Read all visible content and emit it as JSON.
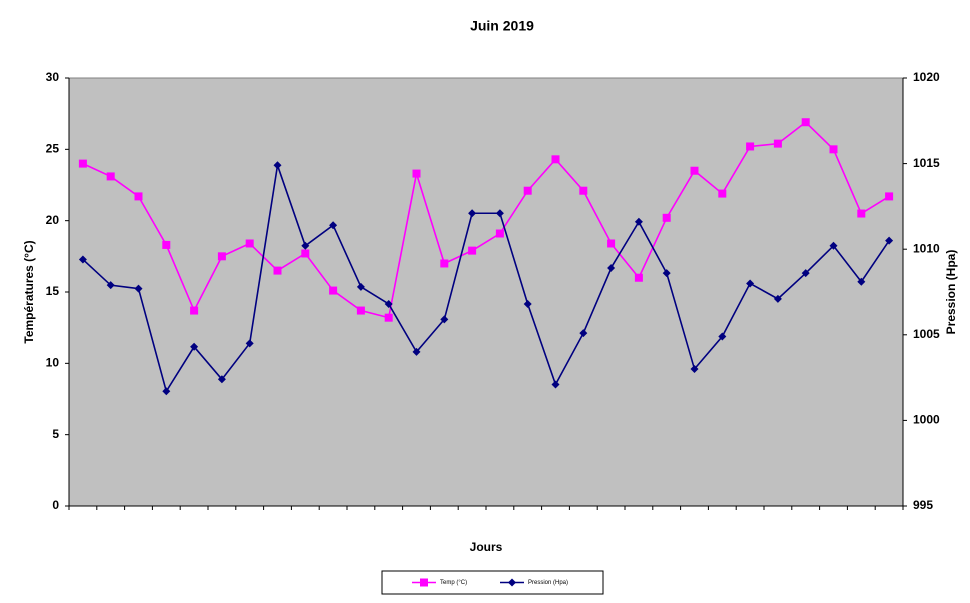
{
  "chart_data": {
    "type": "line",
    "title": "Juin 2019",
    "x_label": "Jours",
    "y_label": "Températures (°C)",
    "y2_label": "Pression (Hpa)",
    "categories": [
      null,
      null,
      null,
      null,
      null,
      null,
      null,
      null,
      null,
      null,
      null,
      null,
      null,
      null,
      null,
      null,
      null,
      null,
      null,
      null,
      null,
      null,
      null,
      null,
      null,
      null,
      null,
      null,
      null,
      null
    ],
    "ylim": [
      0,
      30
    ],
    "yticks": [
      0,
      5,
      10,
      15,
      20,
      25,
      30
    ],
    "y2lim": [
      995,
      1020
    ],
    "y2ticks": [
      995,
      1000,
      1005,
      1010,
      1015,
      1020
    ],
    "grid": false,
    "legend": "bottom",
    "background": "#c0c0c0",
    "series": [
      {
        "name": "Temp (°C)",
        "color": "#ff00ff",
        "marker": "square",
        "values": [
          24.0,
          23.1,
          21.7,
          18.3,
          13.7,
          17.5,
          18.4,
          16.5,
          17.7,
          15.1,
          13.7,
          13.2,
          23.3,
          17.0,
          17.9,
          19.1,
          22.1,
          24.3,
          22.1,
          18.4,
          16.0,
          20.2,
          23.5,
          21.9,
          25.2,
          25.4,
          26.9,
          25.0,
          20.5,
          21.7
        ]
      },
      {
        "name": "Pression (Hpa)",
        "color": "#000080",
        "marker": "diamond",
        "axis": "y2",
        "values": [
          1009.4,
          1007.9,
          1007.7,
          1001.7,
          1004.3,
          1002.4,
          1004.5,
          1014.9,
          1010.2,
          1011.4,
          1007.8,
          1006.8,
          1004.0,
          1005.9,
          1012.1,
          1012.1,
          1006.8,
          1002.1,
          1005.1,
          1008.9,
          1011.6,
          1008.6,
          1003.0,
          1004.9,
          1008.0,
          1007.1,
          1008.6,
          1010.2,
          1008.1,
          1010.5
        ]
      }
    ]
  }
}
